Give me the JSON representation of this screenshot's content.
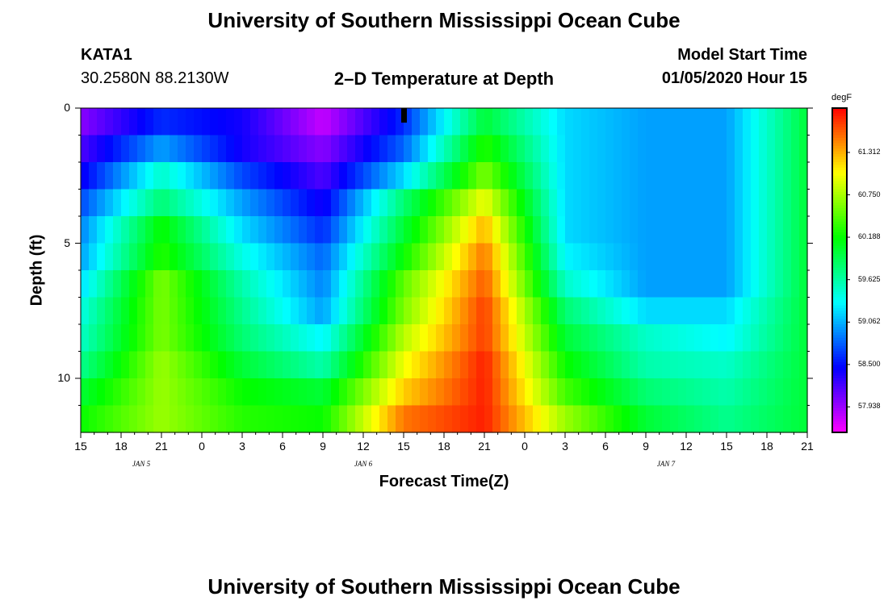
{
  "page": {
    "title_top": "University of Southern Mississippi Ocean Cube",
    "title_bottom": "University of Southern Mississippi Ocean Cube",
    "station_id": "KATA1",
    "station_coords": "30.2580N 88.2130W",
    "plot_title": "2–D Temperature at Depth",
    "model_label": "Model Start Time",
    "model_time": "01/05/2020 Hour 15"
  },
  "chart_data": {
    "type": "heatmap",
    "title": "2–D Temperature at Depth",
    "xlabel": "Forecast Time(Z)",
    "ylabel": "Depth (ft)",
    "x_hours": [
      0,
      6,
      12,
      18,
      24,
      30,
      36,
      42,
      48,
      54
    ],
    "x_tick_hours": [
      0,
      3,
      6,
      9,
      12,
      15,
      18,
      21,
      24,
      27,
      30,
      33,
      36,
      39,
      42,
      45,
      48,
      51,
      54
    ],
    "x_tick_labels": [
      "15",
      "18",
      "21",
      "0",
      "3",
      "6",
      "9",
      "12",
      "15",
      "18",
      "21",
      "0",
      "3",
      "6",
      "9",
      "12",
      "15",
      "18",
      "21"
    ],
    "day_labels": [
      {
        "text": "JAN 5",
        "hour": 4.5
      },
      {
        "text": "JAN 6",
        "hour": 21
      },
      {
        "text": "JAN 7",
        "hour": 43.5
      }
    ],
    "current_time_hour": 24,
    "ylim": [
      0,
      12
    ],
    "y_ticks": [
      0,
      5,
      10
    ],
    "y_tick_labels": [
      "0",
      "5",
      "10"
    ],
    "y_minor_ticks": [
      1,
      2,
      3,
      4,
      6,
      7,
      8,
      9,
      11
    ],
    "depths": [
      0.5,
      1.5,
      2.5,
      3.5,
      4.5,
      5.5,
      6.5,
      7.5,
      8.5,
      9.5,
      10.5,
      11.5
    ],
    "temperatures_degF": [
      [
        58.0,
        58.6,
        58.4,
        57.8,
        58.6,
        60.0,
        59.2,
        59.0,
        59.0,
        60.0
      ],
      [
        58.2,
        59.0,
        58.4,
        58.0,
        58.8,
        60.3,
        59.2,
        59.0,
        59.0,
        60.0
      ],
      [
        58.4,
        59.5,
        58.7,
        58.2,
        59.2,
        60.6,
        59.2,
        59.0,
        59.0,
        60.0
      ],
      [
        58.7,
        59.8,
        59.0,
        58.4,
        59.8,
        61.0,
        59.2,
        59.0,
        59.0,
        60.0
      ],
      [
        58.9,
        60.2,
        59.2,
        58.6,
        60.0,
        61.3,
        59.2,
        59.0,
        59.0,
        60.0
      ],
      [
        59.0,
        60.3,
        59.4,
        58.8,
        60.2,
        61.5,
        59.3,
        59.0,
        59.0,
        60.0
      ],
      [
        59.2,
        60.6,
        59.6,
        58.9,
        60.5,
        61.6,
        59.5,
        59.0,
        59.0,
        60.0
      ],
      [
        59.4,
        60.6,
        59.7,
        59.0,
        60.6,
        61.7,
        59.8,
        59.2,
        59.2,
        60.0
      ],
      [
        59.5,
        60.6,
        59.8,
        59.3,
        60.8,
        61.7,
        60.0,
        59.5,
        59.3,
        60.0
      ],
      [
        59.7,
        60.7,
        60.0,
        59.6,
        61.0,
        61.8,
        60.2,
        59.6,
        59.5,
        60.0
      ],
      [
        60.0,
        60.7,
        60.2,
        60.0,
        61.2,
        61.8,
        60.4,
        59.8,
        59.6,
        60.0
      ],
      [
        60.2,
        60.7,
        60.3,
        60.2,
        61.5,
        61.8,
        60.7,
        60.0,
        59.7,
        60.0
      ]
    ],
    "colorbar": {
      "unit": "degF",
      "vmin": 57.6,
      "vmax": 61.9,
      "labels": [
        "61.312",
        "60.750",
        "60.188",
        "59.625",
        "59.062",
        "58.500",
        "57.938"
      ],
      "label_values": [
        61.312,
        60.75,
        60.188,
        59.625,
        59.062,
        58.5,
        57.938
      ]
    }
  }
}
